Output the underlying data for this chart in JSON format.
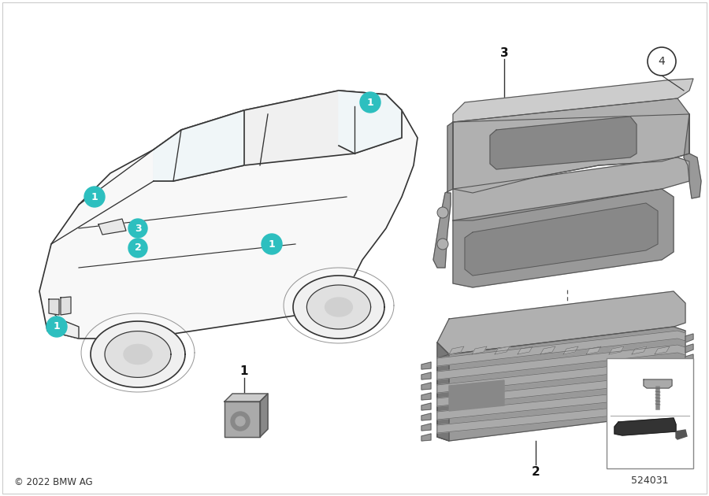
{
  "bg_color": "#ffffff",
  "copyright": "© 2022 BMW AG",
  "part_number": "524031",
  "badge_color": "#2dbfbf",
  "badge_text_color": "#ffffff",
  "car_color": "#333333",
  "part_color_light": "#b0b0b0",
  "part_color_mid": "#999999",
  "part_color_dark": "#777777"
}
